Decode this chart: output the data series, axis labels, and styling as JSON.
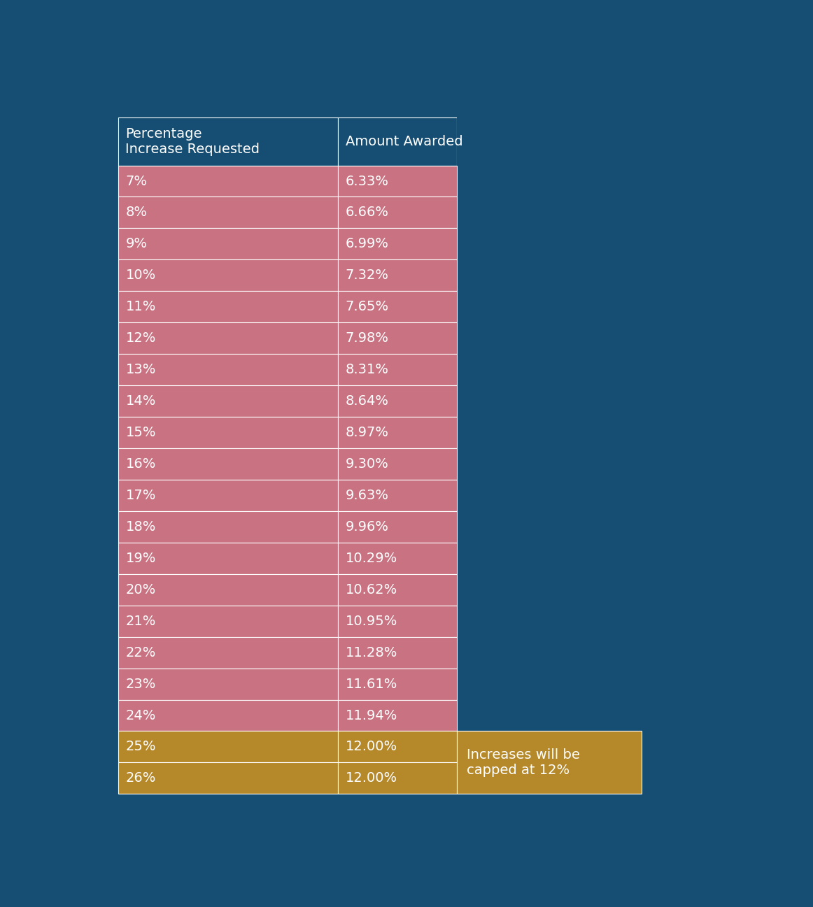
{
  "col1_header": "Percentage\nIncrease Requested",
  "col2_header": "Amount Awarded",
  "rows": [
    [
      "7%",
      "6.33%",
      "pink"
    ],
    [
      "8%",
      "6.66%",
      "pink"
    ],
    [
      "9%",
      "6.99%",
      "pink"
    ],
    [
      "10%",
      "7.32%",
      "pink"
    ],
    [
      "11%",
      "7.65%",
      "pink"
    ],
    [
      "12%",
      "7.98%",
      "pink"
    ],
    [
      "13%",
      "8.31%",
      "pink"
    ],
    [
      "14%",
      "8.64%",
      "pink"
    ],
    [
      "15%",
      "8.97%",
      "pink"
    ],
    [
      "16%",
      "9.30%",
      "pink"
    ],
    [
      "17%",
      "9.63%",
      "pink"
    ],
    [
      "18%",
      "9.96%",
      "pink"
    ],
    [
      "19%",
      "10.29%",
      "pink"
    ],
    [
      "20%",
      "10.62%",
      "pink"
    ],
    [
      "21%",
      "10.95%",
      "pink"
    ],
    [
      "22%",
      "11.28%",
      "pink"
    ],
    [
      "23%",
      "11.61%",
      "pink"
    ],
    [
      "24%",
      "11.94%",
      "pink"
    ],
    [
      "25%",
      "12.00%",
      "gold"
    ],
    [
      "26%",
      "12.00%",
      "gold"
    ]
  ],
  "annotation": "Increases will be\ncapped at 12%",
  "bg_color": "#154e72",
  "header_color": "#154e72",
  "pink_color": "#c87282",
  "gold_color": "#b5882a",
  "text_color": "#ffffff",
  "border_color": "#ffffff",
  "header_font_size": 14,
  "cell_font_size": 14,
  "annotation_font_size": 14
}
